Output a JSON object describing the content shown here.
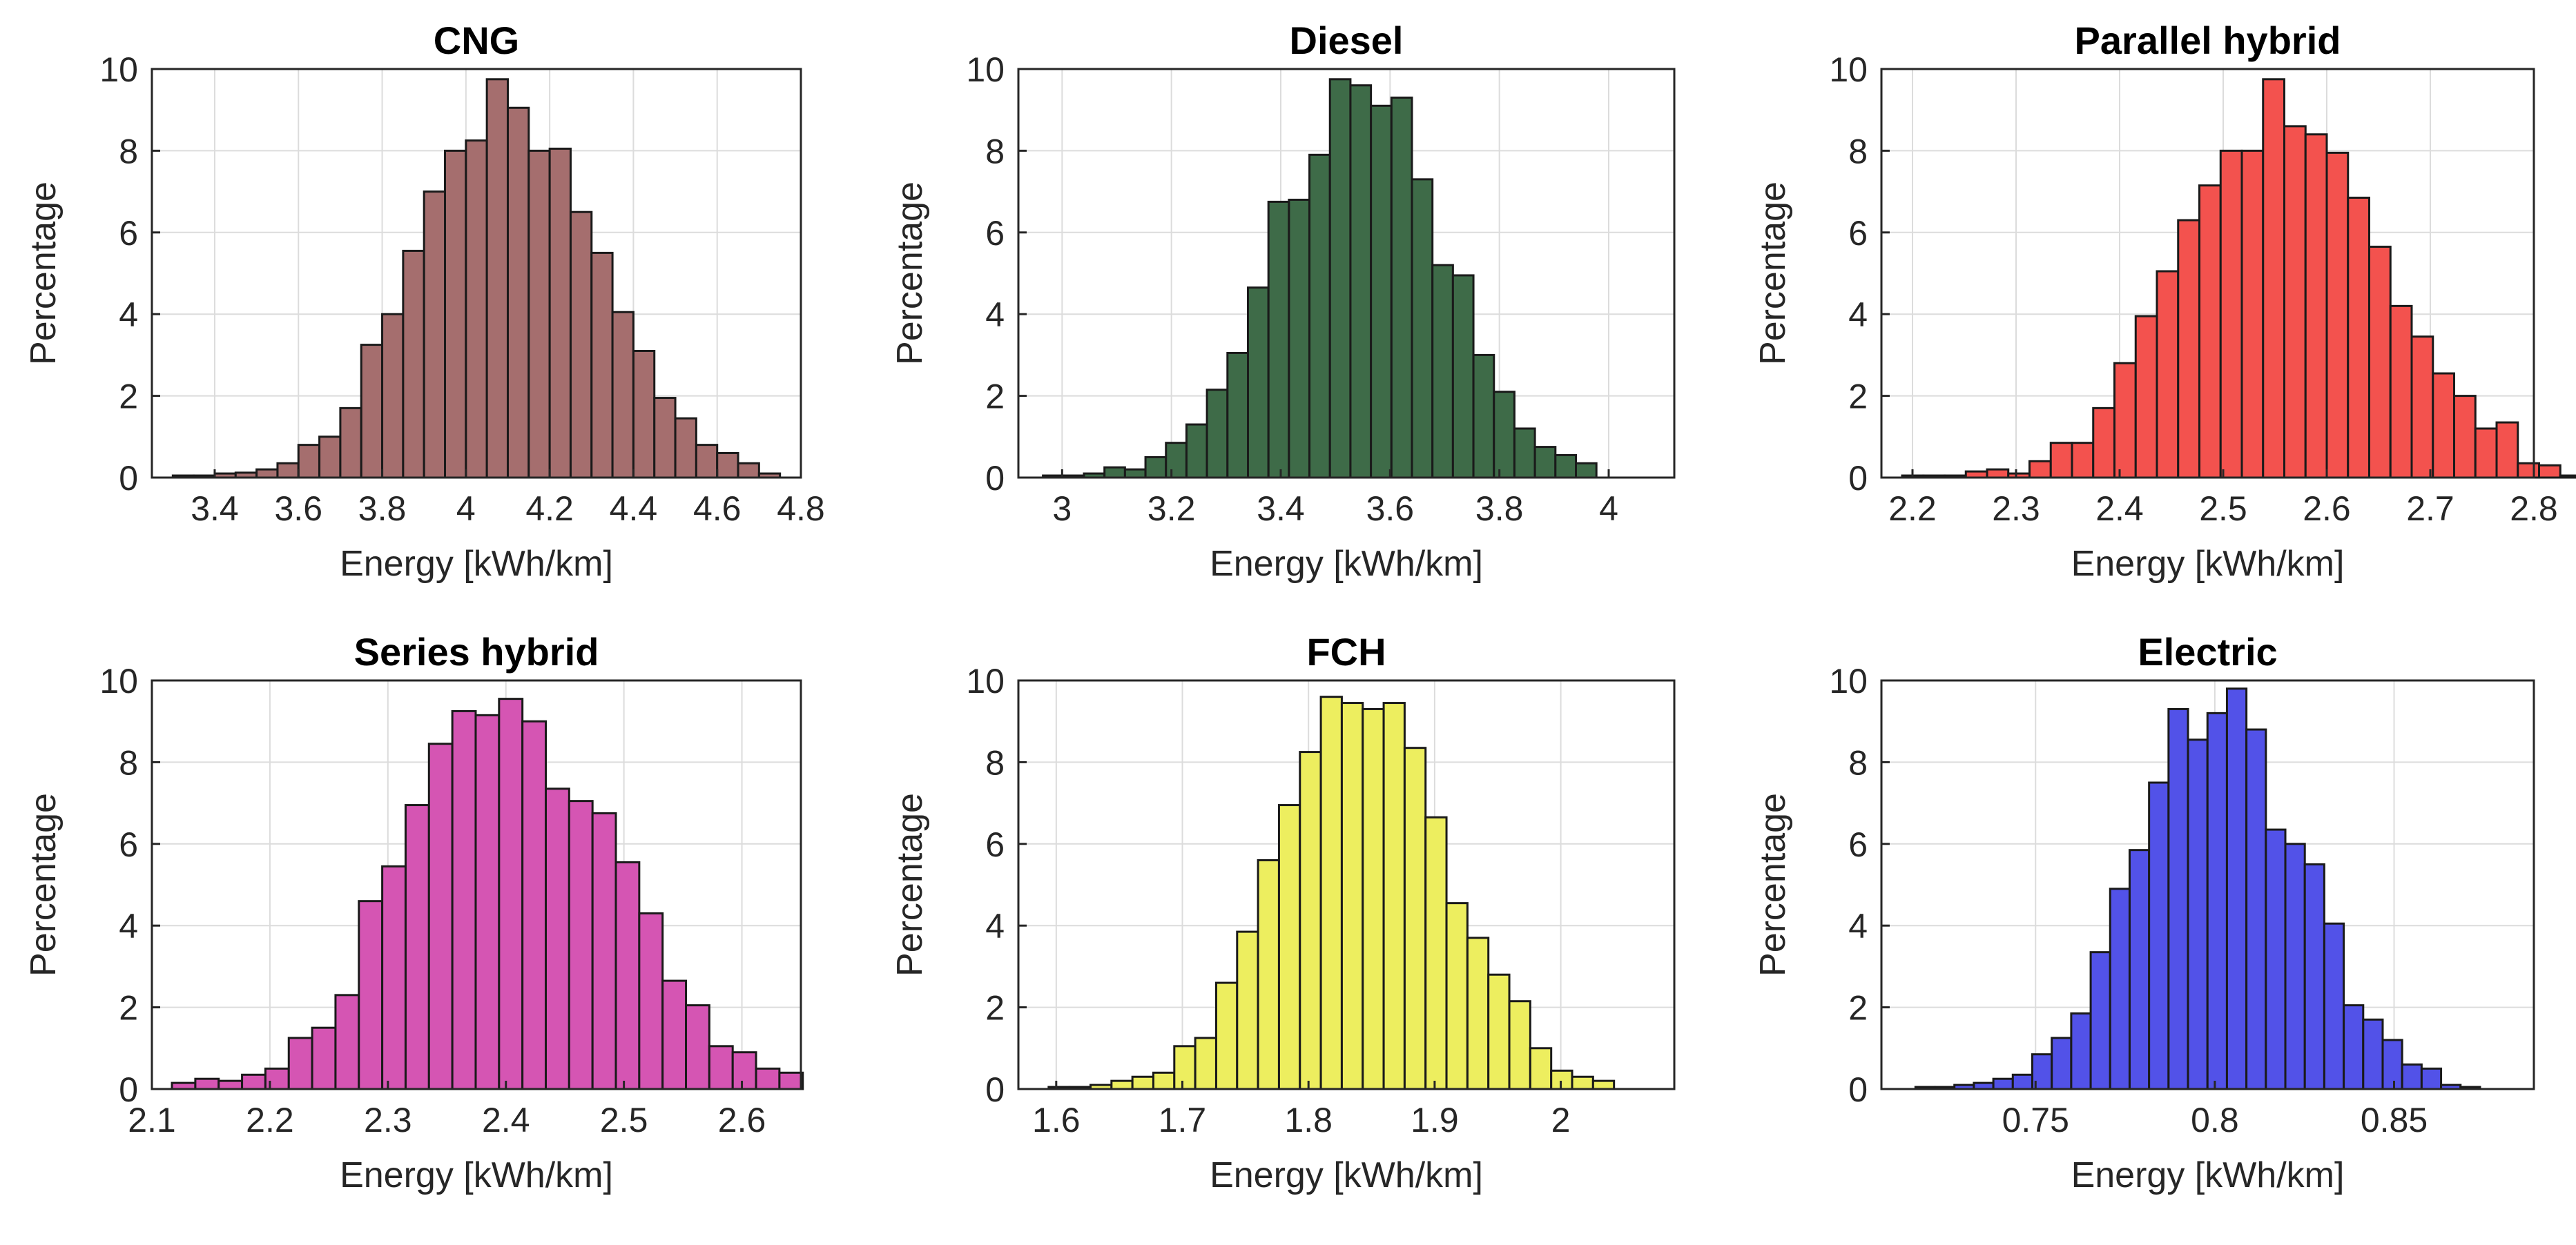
{
  "figure": {
    "description": "Six histograms of energy consumption by powertrain"
  },
  "chart_data": [
    {
      "type": "bar",
      "title": "CNG",
      "xlabel": "Energy [kWh/km]",
      "ylabel": "Percentage",
      "color": "#A56E6E",
      "xlim": [
        3.25,
        4.8
      ],
      "ylim": [
        0,
        10
      ],
      "xticks": [
        3.4,
        3.6,
        3.8,
        4,
        4.2,
        4.4,
        4.6,
        4.8
      ],
      "xtick_labels": [
        "3.4",
        "3.6",
        "3.8",
        "4",
        "4.2",
        "4.4",
        "4.6",
        "4.8"
      ],
      "yticks": [
        0,
        2,
        4,
        6,
        8,
        10
      ],
      "ytick_labels": [
        "0",
        "2",
        "4",
        "6",
        "8",
        "10"
      ],
      "bin_start": 3.3,
      "bin_width": 0.05,
      "values": [
        0.05,
        0.05,
        0.1,
        0.12,
        0.2,
        0.35,
        0.8,
        1.0,
        1.7,
        3.25,
        4.0,
        5.55,
        7.0,
        8.0,
        8.25,
        9.75,
        9.05,
        8.0,
        8.05,
        6.5,
        5.5,
        4.05,
        3.1,
        1.95,
        1.45,
        0.8,
        0.6,
        0.35,
        0.1
      ]
    },
    {
      "type": "bar",
      "title": "Diesel",
      "xlabel": "Energy [kWh/km]",
      "ylabel": "Percentage",
      "color": "#3E6B48",
      "xlim": [
        2.92,
        4.12
      ],
      "ylim": [
        0,
        10
      ],
      "xticks": [
        3,
        3.2,
        3.4,
        3.6,
        3.8,
        4
      ],
      "xtick_labels": [
        "3",
        "3.2",
        "3.4",
        "3.6",
        "3.8",
        "4"
      ],
      "yticks": [
        0,
        2,
        4,
        6,
        8,
        10
      ],
      "ytick_labels": [
        "0",
        "2",
        "4",
        "6",
        "8",
        "10"
      ],
      "bin_start": 2.965,
      "bin_width": 0.0375,
      "values": [
        0.05,
        0.05,
        0.1,
        0.25,
        0.2,
        0.5,
        0.85,
        1.3,
        2.15,
        3.05,
        4.65,
        6.75,
        6.8,
        7.9,
        9.75,
        9.6,
        9.1,
        9.3,
        7.3,
        5.2,
        4.95,
        3.0,
        2.1,
        1.2,
        0.75,
        0.55,
        0.35
      ]
    },
    {
      "type": "bar",
      "title": "Parallel hybrid",
      "xlabel": "Energy [kWh/km]",
      "ylabel": "Percentage",
      "color": "#F3524E",
      "xlim": [
        2.17,
        2.8
      ],
      "ylim": [
        0,
        10
      ],
      "xticks": [
        2.2,
        2.3,
        2.4,
        2.5,
        2.6,
        2.7,
        2.8
      ],
      "xtick_labels": [
        "2.2",
        "2.3",
        "2.4",
        "2.5",
        "2.6",
        "2.7",
        "2.8"
      ],
      "yticks": [
        0,
        2,
        4,
        6,
        8,
        10
      ],
      "ytick_labels": [
        "0",
        "2",
        "4",
        "6",
        "8",
        "10"
      ],
      "bin_start": 2.19,
      "bin_width": 0.0205,
      "values": [
        0.05,
        0.05,
        0.05,
        0.15,
        0.2,
        0.1,
        0.4,
        0.85,
        0.85,
        1.7,
        2.8,
        3.95,
        5.05,
        6.3,
        7.15,
        8.0,
        8.0,
        9.75,
        8.6,
        8.4,
        7.95,
        6.85,
        5.65,
        4.2,
        3.45,
        2.55,
        2.0,
        1.2,
        1.35,
        0.35,
        0.3,
        0.05,
        0.1
      ]
    },
    {
      "type": "bar",
      "title": "Series hybrid",
      "xlabel": "Energy [kWh/km]",
      "ylabel": "Percentage",
      "color": "#D555B3",
      "xlim": [
        2.1,
        2.65
      ],
      "ylim": [
        0,
        10
      ],
      "xticks": [
        2.1,
        2.2,
        2.3,
        2.4,
        2.5,
        2.6
      ],
      "xtick_labels": [
        "2.1",
        "2.2",
        "2.3",
        "2.4",
        "2.5",
        "2.6"
      ],
      "yticks": [
        0,
        2,
        4,
        6,
        8,
        10
      ],
      "ytick_labels": [
        "0",
        "2",
        "4",
        "6",
        "8",
        "10"
      ],
      "bin_start": 2.117,
      "bin_width": 0.0198,
      "values": [
        0.15,
        0.25,
        0.2,
        0.35,
        0.5,
        1.25,
        1.5,
        2.3,
        4.6,
        5.45,
        6.95,
        8.45,
        9.25,
        9.15,
        9.55,
        9.0,
        7.35,
        7.05,
        6.75,
        5.55,
        4.3,
        2.65,
        2.05,
        1.05,
        0.9,
        0.5,
        0.4
      ]
    },
    {
      "type": "bar",
      "title": "FCH",
      "xlabel": "Energy [kWh/km]",
      "ylabel": "Percentage",
      "color": "#EDEE5F",
      "xlim": [
        1.57,
        2.09
      ],
      "ylim": [
        0,
        10
      ],
      "xticks": [
        1.6,
        1.7,
        1.8,
        1.9,
        2
      ],
      "xtick_labels": [
        "1.6",
        "1.7",
        "1.8",
        "1.9",
        "2"
      ],
      "yticks": [
        0,
        2,
        4,
        6,
        8,
        10
      ],
      "ytick_labels": [
        "0",
        "2",
        "4",
        "6",
        "8",
        "10"
      ],
      "bin_start": 1.594,
      "bin_width": 0.0166,
      "values": [
        0.05,
        0.05,
        0.1,
        0.2,
        0.3,
        0.4,
        1.05,
        1.25,
        2.6,
        3.85,
        5.6,
        6.95,
        8.25,
        9.6,
        9.45,
        9.3,
        9.45,
        8.35,
        6.65,
        4.55,
        3.7,
        2.8,
        2.15,
        1.0,
        0.45,
        0.3,
        0.2
      ]
    },
    {
      "type": "bar",
      "title": "Electric",
      "xlabel": "Energy [kWh/km]",
      "ylabel": "Percentage",
      "color": "#5252E8",
      "xlim": [
        0.707,
        0.889
      ],
      "ylim": [
        0,
        10
      ],
      "xticks": [
        0.75,
        0.8,
        0.85
      ],
      "xtick_labels": [
        "0.75",
        "0.8",
        "0.85"
      ],
      "yticks": [
        0,
        2,
        4,
        6,
        8,
        10
      ],
      "ytick_labels": [
        "0",
        "2",
        "4",
        "6",
        "8",
        "10"
      ],
      "bin_start": 0.7165,
      "bin_width": 0.00543,
      "values": [
        0.05,
        0.05,
        0.1,
        0.15,
        0.25,
        0.35,
        0.85,
        1.25,
        1.85,
        3.35,
        4.9,
        5.85,
        7.5,
        9.3,
        8.55,
        9.2,
        9.8,
        8.8,
        6.35,
        6.0,
        5.5,
        4.05,
        2.05,
        1.7,
        1.2,
        0.6,
        0.5,
        0.1,
        0.05
      ]
    }
  ]
}
